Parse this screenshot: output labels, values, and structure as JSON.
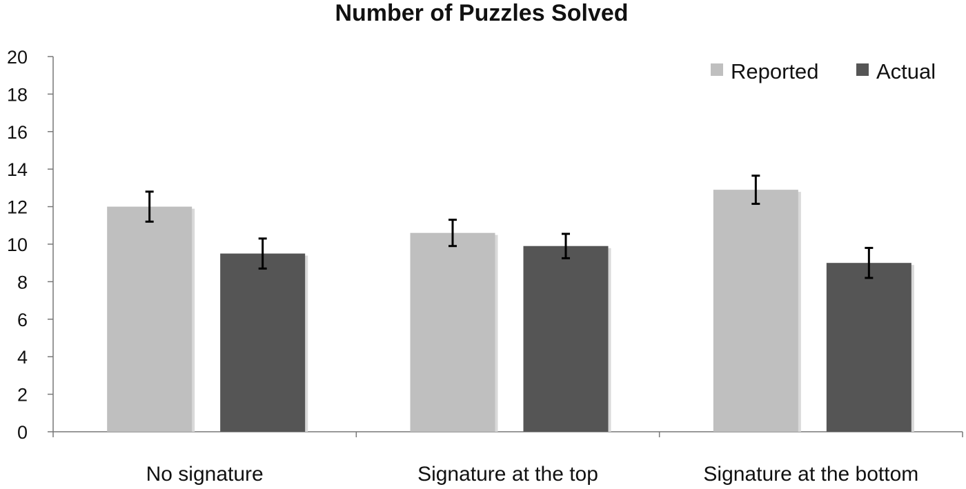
{
  "chart_data": {
    "type": "bar",
    "title": "Number of Puzzles Solved",
    "xlabel": "",
    "ylabel": "",
    "ylim": [
      0,
      20
    ],
    "yticks": [
      0,
      2,
      4,
      6,
      8,
      10,
      12,
      14,
      16,
      18,
      20
    ],
    "grid": false,
    "legend_position": "top-right",
    "categories": [
      "No signature",
      "Signature at the top",
      "Signature at the bottom"
    ],
    "series": [
      {
        "name": "Reported",
        "color": "#bfbfbf",
        "values": [
          12.0,
          10.6,
          12.9
        ],
        "error": [
          0.8,
          0.7,
          0.75
        ]
      },
      {
        "name": "Actual",
        "color": "#555555",
        "values": [
          9.5,
          9.9,
          9.0
        ],
        "error": [
          0.8,
          0.65,
          0.8
        ]
      }
    ]
  }
}
